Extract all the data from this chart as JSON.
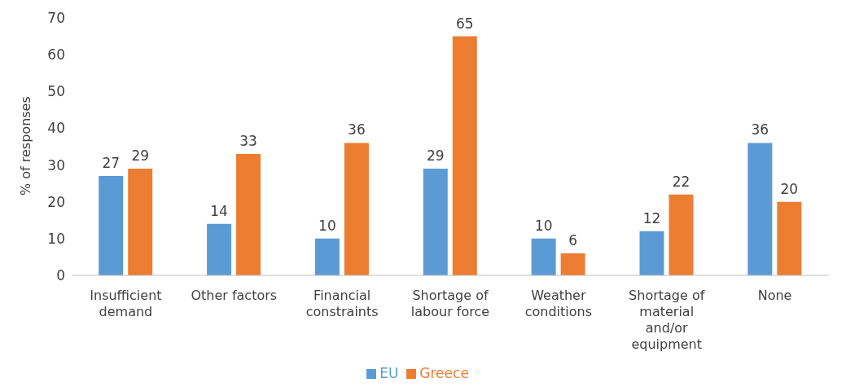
{
  "chart_data": {
    "type": "bar",
    "ylabel": "% of responses",
    "categories": [
      "Insufficient demand",
      "Other factors",
      "Financial constraints",
      "Shortage of labour force",
      "Weather conditions",
      "Shortage of material and/or equipment",
      "None"
    ],
    "series": [
      {
        "name": "EU",
        "color": "#5b9bd5",
        "values": [
          27,
          14,
          10,
          29,
          10,
          12,
          36
        ]
      },
      {
        "name": "Greece",
        "color": "#ed7d31",
        "values": [
          29,
          33,
          36,
          65,
          6,
          22,
          20
        ]
      }
    ],
    "ylim": [
      0,
      70
    ],
    "yticks": [
      0,
      10,
      20,
      30,
      40,
      50,
      60,
      70
    ],
    "grid": false,
    "legend": "bottom",
    "data_labels": true
  }
}
